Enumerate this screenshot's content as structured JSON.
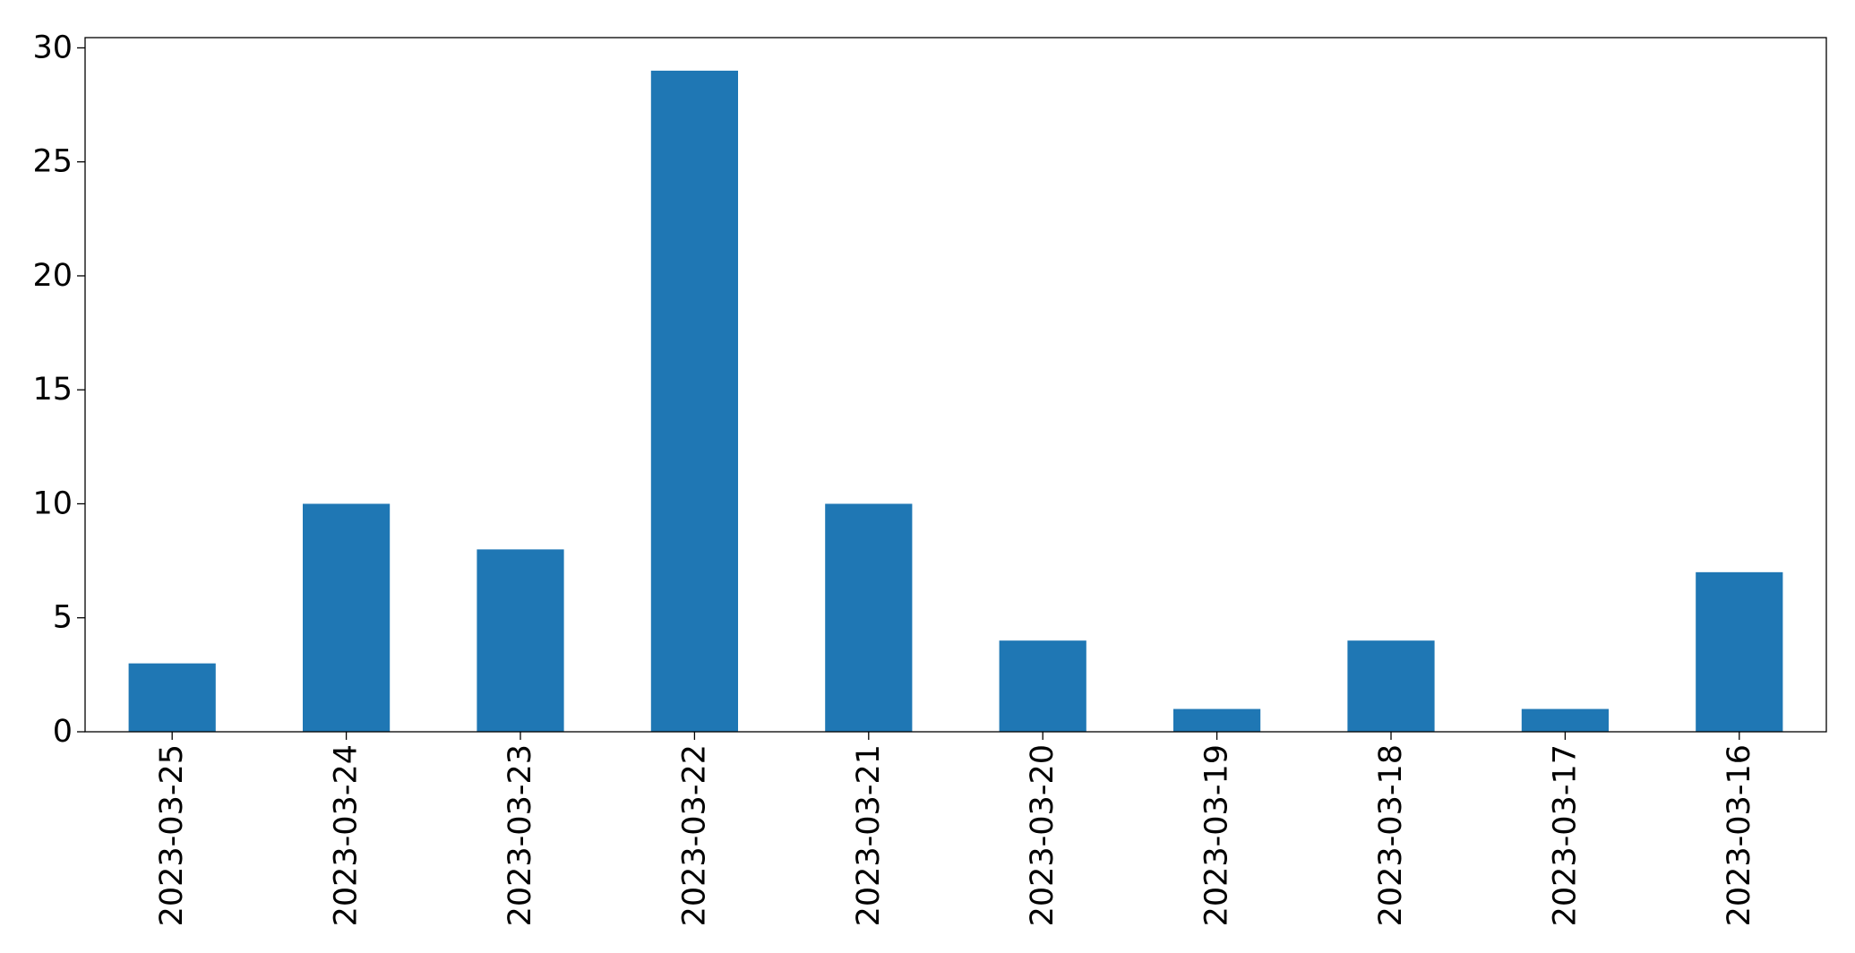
{
  "chart_data": {
    "type": "bar",
    "categories": [
      "2023-03-25",
      "2023-03-24",
      "2023-03-23",
      "2023-03-22",
      "2023-03-21",
      "2023-03-20",
      "2023-03-19",
      "2023-03-18",
      "2023-03-17",
      "2023-03-16"
    ],
    "values": [
      3,
      10,
      8,
      29,
      10,
      4,
      1,
      4,
      1,
      7
    ],
    "title": "",
    "xlabel": "",
    "ylabel": "",
    "ylim": [
      0,
      30.45
    ],
    "yticks": [
      "0",
      "5",
      "10",
      "15",
      "20",
      "25",
      "30"
    ],
    "grid": false,
    "legend": "none",
    "bar_color": "#1f77b4",
    "axis_color": "#000000"
  }
}
